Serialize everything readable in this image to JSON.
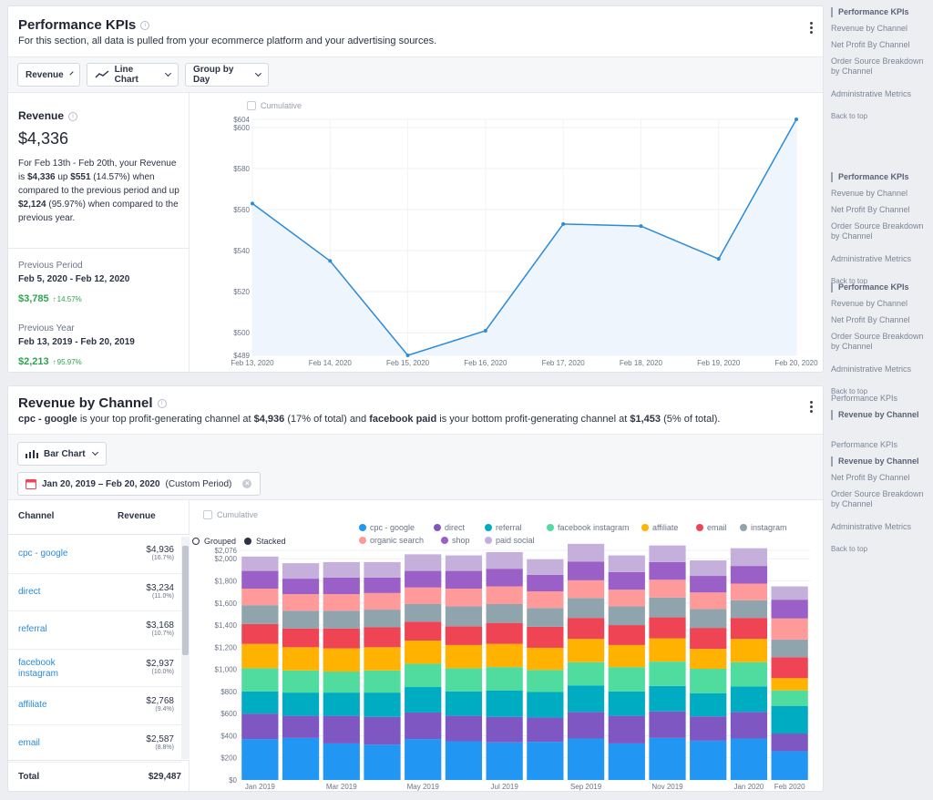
{
  "kpi": {
    "title": "Performance KPIs",
    "subtitle": "For this section, all data is pulled from your ecommerce platform and your advertising sources.",
    "toolbar": {
      "metric": "Revenue",
      "chart_type": "Line Chart",
      "group_by": "Group by Day"
    },
    "revenue": {
      "label": "Revenue",
      "value": "$4,336",
      "desc_1": "For Feb 13th - Feb 20th, your Revenue is ",
      "desc_value": "$4,336",
      "desc_2": " up ",
      "desc_up": "$551",
      "desc_3": " (14.57%) when compared to the previous period and up ",
      "desc_up2": "$2,124",
      "desc_4": " (95.97%) when compared to the previous year."
    },
    "previous_period": {
      "label": "Previous Period",
      "range": "Feb 5, 2020 - Feb 12, 2020",
      "value": "$3,785",
      "change": "14.57%"
    },
    "previous_year": {
      "label": "Previous Year",
      "range": "Feb 13, 2019 - Feb 20, 2019",
      "value": "$2,213",
      "change": "95.97%"
    },
    "cumulative_label": "Cumulative",
    "accent": "#2a8bd8"
  },
  "rbc": {
    "title": "Revenue by Channel",
    "sub_top": "cpc - google",
    "sub_1": " is your top profit-generating channel at ",
    "sub_top_val": "$4,936",
    "sub_2": " (17% of total) and ",
    "sub_bottom": "facebook paid",
    "sub_3": " is your bottom profit-generating channel at ",
    "sub_bottom_val": "$1,453",
    "sub_4": " (5% of total).",
    "chart_type": "Bar Chart",
    "date_range": "Jan 20, 2019 – Feb 20, 2020",
    "period_label": "(Custom Period)",
    "table": {
      "col_channel": "Channel",
      "col_revenue": "Revenue",
      "rows": [
        {
          "name": "cpc - google",
          "value": "$4,936",
          "pct": "(16.7%)"
        },
        {
          "name": "direct",
          "value": "$3,234",
          "pct": "(11.0%)"
        },
        {
          "name": "referral",
          "value": "$3,168",
          "pct": "(10.7%)"
        },
        {
          "name": "facebook instagram",
          "value": "$2,937",
          "pct": "(10.0%)"
        },
        {
          "name": "affiliate",
          "value": "$2,768",
          "pct": "(9.4%)"
        },
        {
          "name": "email",
          "value": "$2,587",
          "pct": "(8.8%)"
        }
      ],
      "total_label": "Total",
      "total_value": "$29,487"
    },
    "cumulative_label": "Cumulative",
    "grouped_label": "Grouped",
    "stacked_label": "Stacked"
  },
  "side_navs": [
    {
      "items": [
        "Performance KPIs",
        "Revenue by Channel",
        "Net Profit By Channel",
        "Order Source Breakdown by Channel",
        "Administrative Metrics"
      ],
      "active": 0,
      "back": "Back to top"
    },
    {
      "items": [
        "Performance KPIs",
        "Revenue by Channel",
        "Net Profit By Channel",
        "Order Source Breakdown by Channel",
        "Administrative Metrics"
      ],
      "active": 0,
      "back": "Back to top"
    },
    {
      "items": [
        "Performance KPIs",
        "Revenue by Channel",
        "Net Profit By Channel",
        "Order Source Breakdown by Channel",
        "Administrative Metrics"
      ],
      "active": 0,
      "back": "Back to top"
    },
    {
      "items": [
        "Performance KPIs",
        "Revenue by Channel"
      ],
      "active": 1,
      "back": ""
    },
    {
      "items": [
        "Performance KPIs",
        "Revenue by Channel",
        "Net Profit By Channel",
        "Order Source Breakdown by Channel",
        "Administrative Metrics"
      ],
      "active": 1,
      "back": "Back to top"
    }
  ],
  "chart_data": [
    {
      "type": "line",
      "x": [
        "Feb 13, 2020",
        "Feb 14, 2020",
        "Feb 15, 2020",
        "Feb 16, 2020",
        "Feb 17, 2020",
        "Feb 18, 2020",
        "Feb 19, 2020",
        "Feb 20, 2020"
      ],
      "series": [
        {
          "values": [
            563,
            535,
            489,
            501,
            553,
            552,
            536,
            604
          ]
        }
      ],
      "yticks": [
        "$489",
        "$500",
        "$520",
        "$540",
        "$560",
        "$580",
        "$600",
        "$604"
      ],
      "ylim": [
        489,
        604
      ],
      "color": "#2a8bd8",
      "grid": true
    },
    {
      "type": "bar",
      "stacked": true,
      "categories": [
        "Jan 2019",
        "Feb 2019",
        "Mar 2019",
        "Apr 2019",
        "May 2019",
        "Jun 2019",
        "Jul 2019",
        "Aug 2019",
        "Sep 2019",
        "Oct 2019",
        "Nov 2019",
        "Dec 2019",
        "Jan 2020",
        "Feb 2020"
      ],
      "x_tick_labels": [
        "Jan 2019",
        "",
        "Mar 2019",
        "",
        "May 2019",
        "",
        "Jul 2019",
        "",
        "Sep 2019",
        "",
        "Nov 2019",
        "",
        "Jan 2020",
        "Feb 2020"
      ],
      "yticks": [
        "$0",
        "$200",
        "$400",
        "$600",
        "$800",
        "$1,000",
        "$1,200",
        "$1,400",
        "$1,600",
        "$1,800",
        "$2,000",
        "$2,076"
      ],
      "ylim": [
        0,
        2076
      ],
      "legend_position": "top",
      "series": [
        {
          "name": "cpc - google",
          "color": "#2196f3",
          "values": [
            370,
            380,
            330,
            320,
            370,
            350,
            340,
            345,
            375,
            330,
            380,
            355,
            375,
            260
          ]
        },
        {
          "name": "direct",
          "color": "#7e57c2",
          "values": [
            230,
            200,
            250,
            250,
            240,
            230,
            230,
            220,
            240,
            250,
            240,
            220,
            240,
            160
          ]
        },
        {
          "name": "referral",
          "color": "#00acc1",
          "values": [
            200,
            210,
            210,
            220,
            230,
            220,
            240,
            230,
            240,
            220,
            230,
            210,
            230,
            250
          ]
        },
        {
          "name": "facebook instagram",
          "color": "#4fdc9e",
          "values": [
            210,
            200,
            190,
            200,
            210,
            210,
            210,
            200,
            210,
            220,
            220,
            220,
            220,
            140
          ]
        },
        {
          "name": "affiliate",
          "color": "#ffb300",
          "values": [
            220,
            210,
            210,
            210,
            210,
            210,
            210,
            200,
            210,
            200,
            210,
            180,
            210,
            110
          ]
        },
        {
          "name": "email",
          "color": "#ef4454",
          "values": [
            180,
            170,
            180,
            180,
            170,
            170,
            190,
            190,
            190,
            180,
            190,
            190,
            190,
            190
          ]
        },
        {
          "name": "instagram",
          "color": "#90a4ae",
          "values": [
            170,
            160,
            160,
            160,
            160,
            180,
            170,
            170,
            180,
            170,
            180,
            170,
            160,
            160
          ]
        },
        {
          "name": "organic search",
          "color": "#ff9a9a",
          "values": [
            150,
            150,
            150,
            150,
            150,
            160,
            160,
            150,
            160,
            150,
            160,
            150,
            150,
            190
          ]
        },
        {
          "name": "shop",
          "color": "#9b5fc8",
          "values": [
            160,
            140,
            150,
            140,
            150,
            160,
            160,
            150,
            170,
            160,
            160,
            150,
            160,
            170
          ]
        },
        {
          "name": "paid social",
          "color": "#c5b0dc",
          "values": [
            130,
            140,
            140,
            140,
            150,
            140,
            150,
            140,
            160,
            150,
            150,
            140,
            160,
            120
          ]
        }
      ]
    }
  ]
}
